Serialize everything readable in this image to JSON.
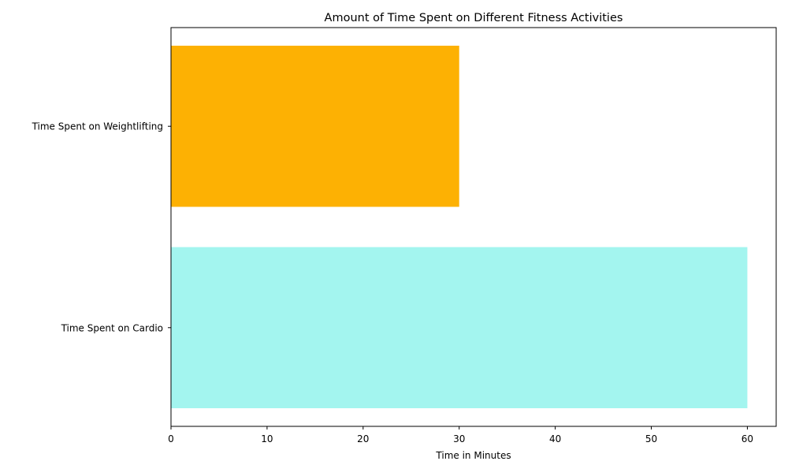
{
  "chart_data": {
    "type": "bar",
    "orientation": "horizontal",
    "title": "Amount of Time Spent on Different Fitness Activities",
    "xlabel": "Time in Minutes",
    "ylabel": "",
    "categories": [
      "Time Spent on Cardio",
      "Time Spent on Weightlifting"
    ],
    "values": [
      60,
      30
    ],
    "colors": [
      "#a3f5ef",
      "#fdb103"
    ],
    "xlim": [
      0,
      63
    ],
    "xticks": [
      0,
      10,
      20,
      30,
      40,
      50,
      60
    ],
    "grid": false,
    "legend": "none"
  }
}
